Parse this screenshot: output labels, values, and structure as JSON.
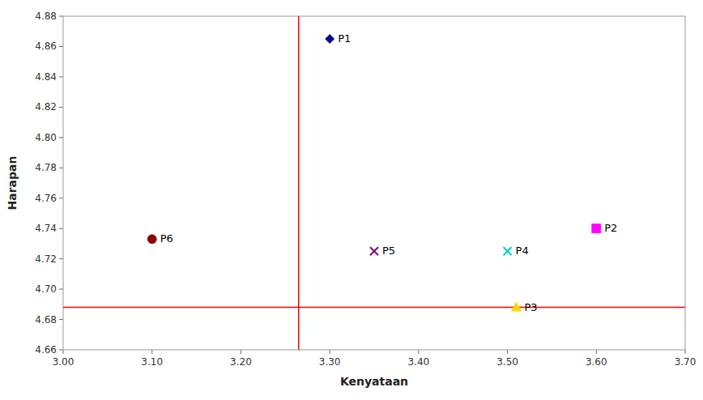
{
  "chart_data": {
    "type": "scatter",
    "xlabel": "Kenyataan",
    "ylabel": "Harapan",
    "series": [
      {
        "name": "P1",
        "x": [
          3.3
        ],
        "values": [
          4.865
        ],
        "color": "#00008B",
        "marker": "diamond"
      },
      {
        "name": "P2",
        "x": [
          3.6
        ],
        "values": [
          4.74
        ],
        "color": "#FF00FF",
        "marker": "square"
      },
      {
        "name": "P3",
        "x": [
          3.51
        ],
        "values": [
          4.688
        ],
        "color": "#FFD700",
        "marker": "triangle"
      },
      {
        "name": "P4",
        "x": [
          3.5
        ],
        "values": [
          4.725
        ],
        "color": "#00CCCC",
        "marker": "x"
      },
      {
        "name": "P5",
        "x": [
          3.35
        ],
        "values": [
          4.725
        ],
        "color": "#800080",
        "marker": "x"
      },
      {
        "name": "P6",
        "x": [
          3.1
        ],
        "values": [
          4.733
        ],
        "color": "#8B0000",
        "marker": "circle"
      }
    ],
    "reference_lines": [
      {
        "axis": "x",
        "value": 3.265,
        "color": "#FF0000"
      },
      {
        "axis": "y",
        "value": 4.688,
        "color": "#FF0000"
      }
    ],
    "xlim": [
      3.0,
      3.7
    ],
    "ylim": [
      4.66,
      4.88
    ],
    "xticks": [
      {
        "value": 3.0,
        "label": "3.00"
      },
      {
        "value": 3.1,
        "label": "3.10"
      },
      {
        "value": 3.2,
        "label": "3.20"
      },
      {
        "value": 3.3,
        "label": "3.30"
      },
      {
        "value": 3.4,
        "label": "3.40"
      },
      {
        "value": 3.5,
        "label": "3.50"
      },
      {
        "value": 3.6,
        "label": "3.60"
      },
      {
        "value": 3.7,
        "label": "3.70"
      }
    ],
    "yticks": [
      4.66,
      4.68,
      {
        "value": 4.7,
        "label": "4.70"
      },
      4.72,
      4.74,
      4.76,
      4.78,
      {
        "value": 4.8,
        "label": "4.80"
      },
      4.82,
      4.84,
      4.86,
      4.88
    ],
    "grid": false
  }
}
